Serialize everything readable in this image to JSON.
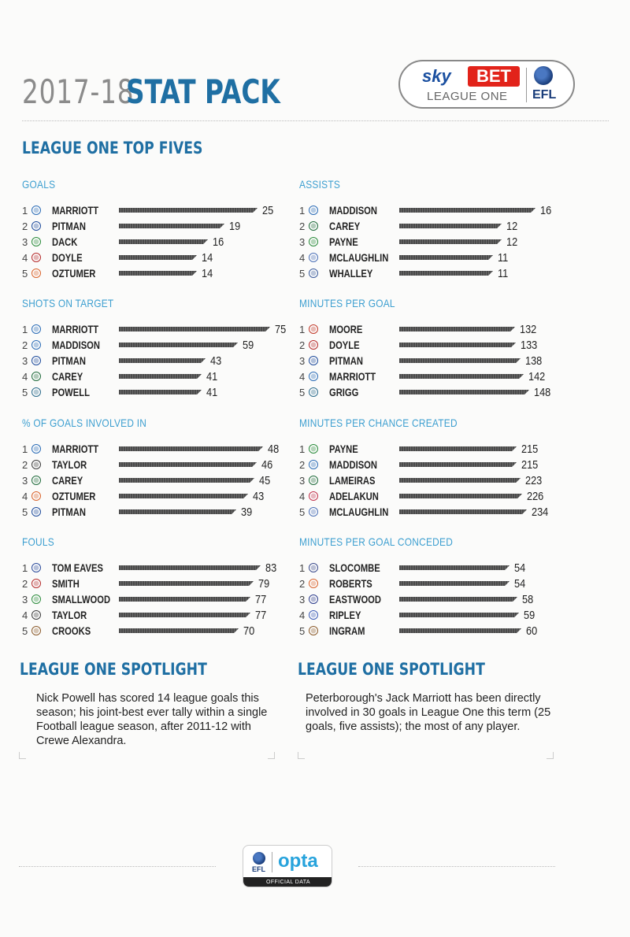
{
  "header": {
    "year": "2017-18",
    "title": "STAT PACK"
  },
  "sponsor": {
    "sky": "sky",
    "bet": "BET",
    "league": "LEAGUE ONE",
    "efl": "EFL"
  },
  "section_title": "LEAGUE ONE TOP FIVES",
  "categories": [
    {
      "title": "GOALS",
      "max": 25,
      "players": [
        {
          "rank": "1",
          "name": "MARRIOTT",
          "value": 25,
          "icon": "peterborough-crest-icon",
          "color": "#2a6bb5"
        },
        {
          "rank": "2",
          "name": "PITMAN",
          "value": 19,
          "icon": "portsmouth-crest-icon",
          "color": "#1d4a9a"
        },
        {
          "rank": "3",
          "name": "DACK",
          "value": 16,
          "icon": "blackburn-crest-icon",
          "color": "#2a8a3a"
        },
        {
          "rank": "4",
          "name": "DOYLE",
          "value": 14,
          "icon": "rotherham-crest-icon",
          "color": "#b42a2a"
        },
        {
          "rank": "5",
          "name": "OZTUMER",
          "value": 14,
          "icon": "walsall-crest-icon",
          "color": "#d9622a"
        }
      ]
    },
    {
      "title": "ASSISTS",
      "max": 16,
      "players": [
        {
          "rank": "1",
          "name": "MADDISON",
          "value": 16,
          "icon": "peterborough-crest-icon",
          "color": "#2a6bb5"
        },
        {
          "rank": "2",
          "name": "CAREY",
          "value": 12,
          "icon": "plymouth-crest-icon",
          "color": "#1f6a3a"
        },
        {
          "rank": "3",
          "name": "PAYNE",
          "value": 12,
          "icon": "blackburn-crest-icon",
          "color": "#2a8a3a"
        },
        {
          "rank": "4",
          "name": "MCLAUGHLIN",
          "value": 11,
          "icon": "bury-crest-icon",
          "color": "#4a6fb5"
        },
        {
          "rank": "5",
          "name": "WHALLEY",
          "value": 11,
          "icon": "shrewsbury-crest-icon",
          "color": "#3a5a9a"
        }
      ]
    },
    {
      "title": "SHOTS ON TARGET",
      "max": 75,
      "players": [
        {
          "rank": "1",
          "name": "MARRIOTT",
          "value": 75,
          "icon": "peterborough-crest-icon",
          "color": "#2a6bb5"
        },
        {
          "rank": "2",
          "name": "MADDISON",
          "value": 59,
          "icon": "peterborough-crest-icon",
          "color": "#2a6bb5"
        },
        {
          "rank": "3",
          "name": "PITMAN",
          "value": 43,
          "icon": "portsmouth-crest-icon",
          "color": "#1d4a9a"
        },
        {
          "rank": "4",
          "name": "CAREY",
          "value": 41,
          "icon": "plymouth-crest-icon",
          "color": "#1f6a3a"
        },
        {
          "rank": "5",
          "name": "POWELL",
          "value": 41,
          "icon": "wigan-crest-icon",
          "color": "#2a6a8a"
        }
      ]
    },
    {
      "title": "MINUTES PER GOAL",
      "max": 148,
      "players": [
        {
          "rank": "1",
          "name": "MOORE",
          "value": 132,
          "icon": "fleetwood-crest-icon",
          "color": "#c03a2a"
        },
        {
          "rank": "2",
          "name": "DOYLE",
          "value": 133,
          "icon": "rotherham-crest-icon",
          "color": "#b42a2a"
        },
        {
          "rank": "3",
          "name": "PITMAN",
          "value": 138,
          "icon": "portsmouth-crest-icon",
          "color": "#1d4a9a"
        },
        {
          "rank": "4",
          "name": "MARRIOTT",
          "value": 142,
          "icon": "peterborough-crest-icon",
          "color": "#2a6bb5"
        },
        {
          "rank": "5",
          "name": "GRIGG",
          "value": 148,
          "icon": "wigan-crest-icon",
          "color": "#2a6a8a"
        }
      ]
    },
    {
      "title": "% OF GOALS INVOLVED IN",
      "max": 48,
      "players": [
        {
          "rank": "1",
          "name": "MARRIOTT",
          "value": 48,
          "icon": "peterborough-crest-icon",
          "color": "#2a6bb5"
        },
        {
          "rank": "2",
          "name": "TAYLOR",
          "value": 46,
          "icon": "bristol-rovers-crest-icon",
          "color": "#3a3a3a"
        },
        {
          "rank": "3",
          "name": "CAREY",
          "value": 45,
          "icon": "plymouth-crest-icon",
          "color": "#1f6a3a"
        },
        {
          "rank": "4",
          "name": "OZTUMER",
          "value": 43,
          "icon": "walsall-crest-icon",
          "color": "#d9622a"
        },
        {
          "rank": "5",
          "name": "PITMAN",
          "value": 39,
          "icon": "portsmouth-crest-icon",
          "color": "#1d4a9a"
        }
      ]
    },
    {
      "title": "MINUTES PER CHANCE CREATED",
      "max": 234,
      "players": [
        {
          "rank": "1",
          "name": "PAYNE",
          "value": 215,
          "icon": "blackburn-crest-icon",
          "color": "#2a8a3a"
        },
        {
          "rank": "2",
          "name": "MADDISON",
          "value": 215,
          "icon": "peterborough-crest-icon",
          "color": "#2a6bb5"
        },
        {
          "rank": "3",
          "name": "LAMEIRAS",
          "value": 223,
          "icon": "plymouth-crest-icon",
          "color": "#1f6a3a"
        },
        {
          "rank": "4",
          "name": "ADELAKUN",
          "value": 226,
          "icon": "scunthorpe-crest-icon",
          "color": "#c0304a"
        },
        {
          "rank": "5",
          "name": "MCLAUGHLIN",
          "value": 234,
          "icon": "bury-crest-icon",
          "color": "#4a6fb5"
        }
      ]
    },
    {
      "title": "FOULS",
      "max": 83,
      "players": [
        {
          "rank": "1",
          "name": "TOM EAVES",
          "value": 83,
          "icon": "gillingham-crest-icon",
          "color": "#2a4a9a"
        },
        {
          "rank": "2",
          "name": "SMITH",
          "value": 79,
          "icon": "rotherham-crest-icon",
          "color": "#b42a2a"
        },
        {
          "rank": "3",
          "name": "SMALLWOOD",
          "value": 77,
          "icon": "blackburn-crest-icon",
          "color": "#2a8a3a"
        },
        {
          "rank": "4",
          "name": "TAYLOR",
          "value": 77,
          "icon": "bristol-rovers-crest-icon",
          "color": "#3a3a3a"
        },
        {
          "rank": "5",
          "name": "CROOKS",
          "value": 70,
          "icon": "bradford-crest-icon",
          "color": "#8a5a2a"
        }
      ]
    },
    {
      "title": "MINUTES PER GOAL CONCEDED",
      "max": 60,
      "players": [
        {
          "rank": "1",
          "name": "SLOCOMBE",
          "value": 54,
          "icon": "blackpool-crest-icon",
          "color": "#3a4a8a"
        },
        {
          "rank": "2",
          "name": "ROBERTS",
          "value": 54,
          "icon": "blackpool-crest-icon",
          "color": "#d9622a"
        },
        {
          "rank": "3",
          "name": "EASTWOOD",
          "value": 58,
          "icon": "oxford-crest-icon",
          "color": "#2a3a8a"
        },
        {
          "rank": "4",
          "name": "RIPLEY",
          "value": 59,
          "icon": "oldham-crest-icon",
          "color": "#3a5ab5"
        },
        {
          "rank": "5",
          "name": "INGRAM",
          "value": 60,
          "icon": "bradford-crest-icon",
          "color": "#8a5a2a"
        }
      ]
    }
  ],
  "spotlights": [
    {
      "title": "LEAGUE ONE SPOTLIGHT",
      "text": "Nick Powell has scored 14 league goals this season; his joint-best ever tally within a single Football league season, after 2011-12 with Crewe Alexandra."
    },
    {
      "title": "LEAGUE ONE SPOTLIGHT",
      "text": "Peterborough's Jack Marriott has been directly involved in 30 goals in League One this term (25 goals, five assists); the most of any player."
    }
  ],
  "footer": {
    "efl": "EFL",
    "opta": "opta",
    "official": "OFFICIAL DATA"
  }
}
